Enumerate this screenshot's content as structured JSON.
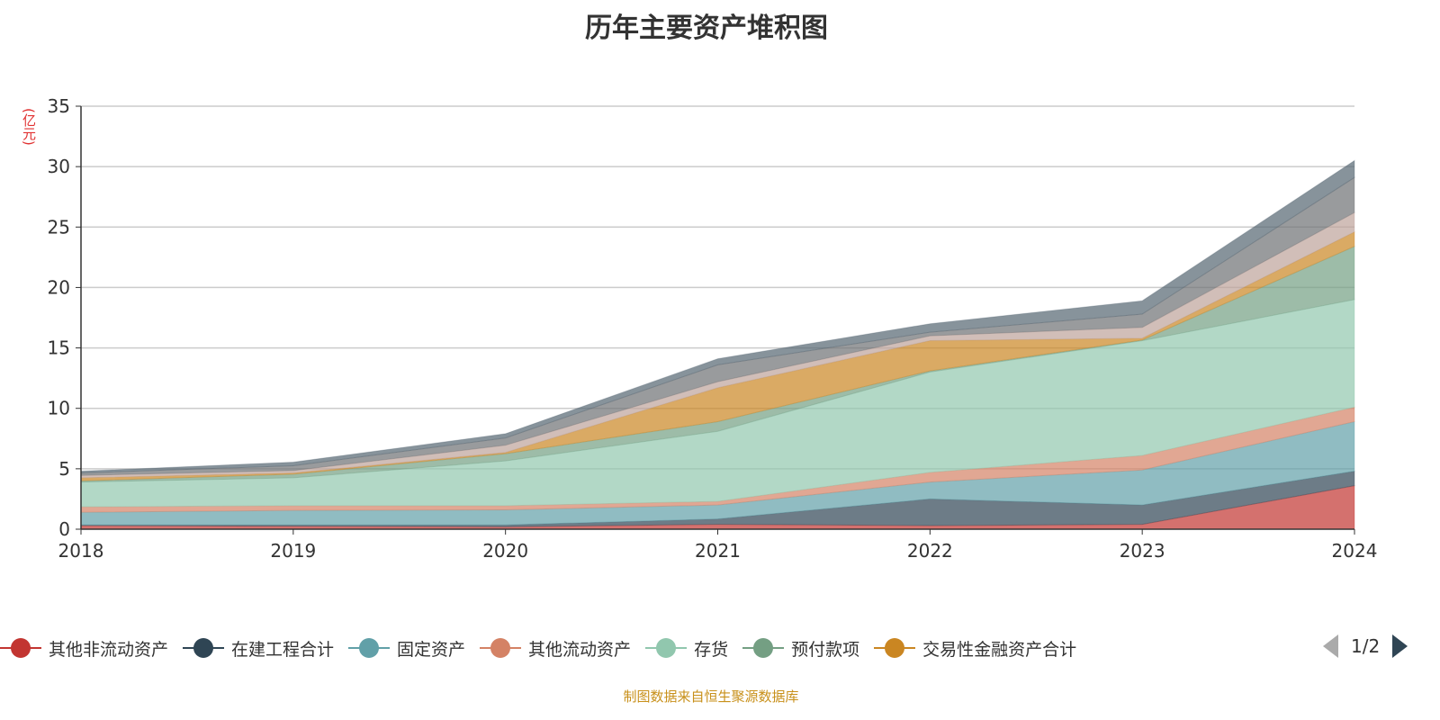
{
  "title": "历年主要资产堆积图",
  "unit": "(亿元)",
  "source": "制图数据来自恒生聚源数据库",
  "pager": "1/2",
  "chart_data": {
    "type": "area",
    "stacked": true,
    "title": "历年主要资产堆积图",
    "ylabel": "(亿元)",
    "ylim": [
      0,
      35
    ],
    "yticks": [
      0,
      5,
      10,
      15,
      20,
      25,
      30,
      35
    ],
    "categories": [
      "2018",
      "2019",
      "2020",
      "2021",
      "2022",
      "2023",
      "2024"
    ],
    "legend_position": "bottom",
    "grid": true,
    "series": [
      {
        "name": "其他非流动资产",
        "color": "#c23531",
        "values": [
          0.3,
          0.25,
          0.2,
          0.4,
          0.3,
          0.4,
          3.6
        ]
      },
      {
        "name": "在建工程合计",
        "color": "#2f4554",
        "values": [
          0.05,
          0.1,
          0.15,
          0.45,
          2.2,
          1.6,
          1.2
        ]
      },
      {
        "name": "固定资产",
        "color": "#61a0a8",
        "values": [
          1.05,
          1.2,
          1.25,
          1.15,
          1.4,
          2.9,
          4.1
        ]
      },
      {
        "name": "其他流动资产",
        "color": "#d48265",
        "values": [
          0.45,
          0.4,
          0.35,
          0.3,
          0.8,
          1.2,
          1.2
        ]
      },
      {
        "name": "存货",
        "color": "#91c7ae",
        "values": [
          2.05,
          2.3,
          3.7,
          5.8,
          8.3,
          9.5,
          8.9
        ]
      },
      {
        "name": "预付款项",
        "color": "#749f83",
        "values": [
          0.1,
          0.3,
          0.6,
          0.8,
          0.1,
          0.05,
          4.4
        ]
      },
      {
        "name": "交易性金融资产合计",
        "color": "#ca8622",
        "values": [
          0.25,
          0.1,
          0.1,
          2.8,
          2.5,
          0.15,
          1.2
        ]
      },
      {
        "name": "",
        "color": "#bda29a",
        "values": [
          0.2,
          0.2,
          0.6,
          0.5,
          0.4,
          0.9,
          1.6
        ]
      },
      {
        "name": "",
        "color": "#6e7074",
        "values": [
          0.2,
          0.4,
          0.6,
          1.4,
          0.3,
          1.1,
          2.9
        ]
      },
      {
        "name": "",
        "color": "#546570",
        "values": [
          0.15,
          0.3,
          0.35,
          0.5,
          0.7,
          1.1,
          1.4
        ]
      }
    ]
  }
}
